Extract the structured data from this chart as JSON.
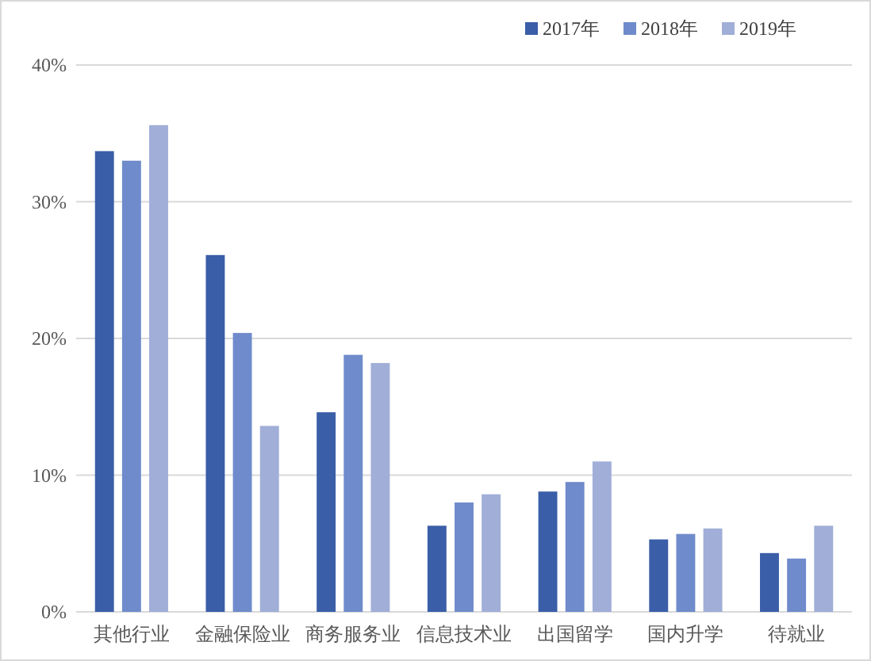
{
  "chart_data": {
    "type": "bar",
    "categories": [
      "其他行业",
      "金融保险业",
      "商务服务业",
      "信息技术业",
      "出国留学",
      "国内升学",
      "待就业"
    ],
    "series": [
      {
        "name": "2017年",
        "color": "#3a5ea8",
        "values": [
          33.7,
          26.1,
          14.6,
          6.3,
          8.8,
          5.3,
          4.3
        ]
      },
      {
        "name": "2018年",
        "color": "#6f8bcb",
        "values": [
          33.0,
          20.4,
          18.8,
          8.0,
          9.5,
          5.7,
          3.9
        ]
      },
      {
        "name": "2019年",
        "color": "#a0aed8",
        "values": [
          35.6,
          13.6,
          18.2,
          8.6,
          11.0,
          6.1,
          6.3
        ]
      }
    ],
    "ylim": [
      0,
      40
    ],
    "yticks": [
      {
        "value": 0,
        "label": "0%"
      },
      {
        "value": 10,
        "label": "10%"
      },
      {
        "value": 20,
        "label": "20%"
      },
      {
        "value": 30,
        "label": "30%"
      },
      {
        "value": 40,
        "label": "40%"
      }
    ],
    "grid": "y",
    "legend": "top right"
  }
}
